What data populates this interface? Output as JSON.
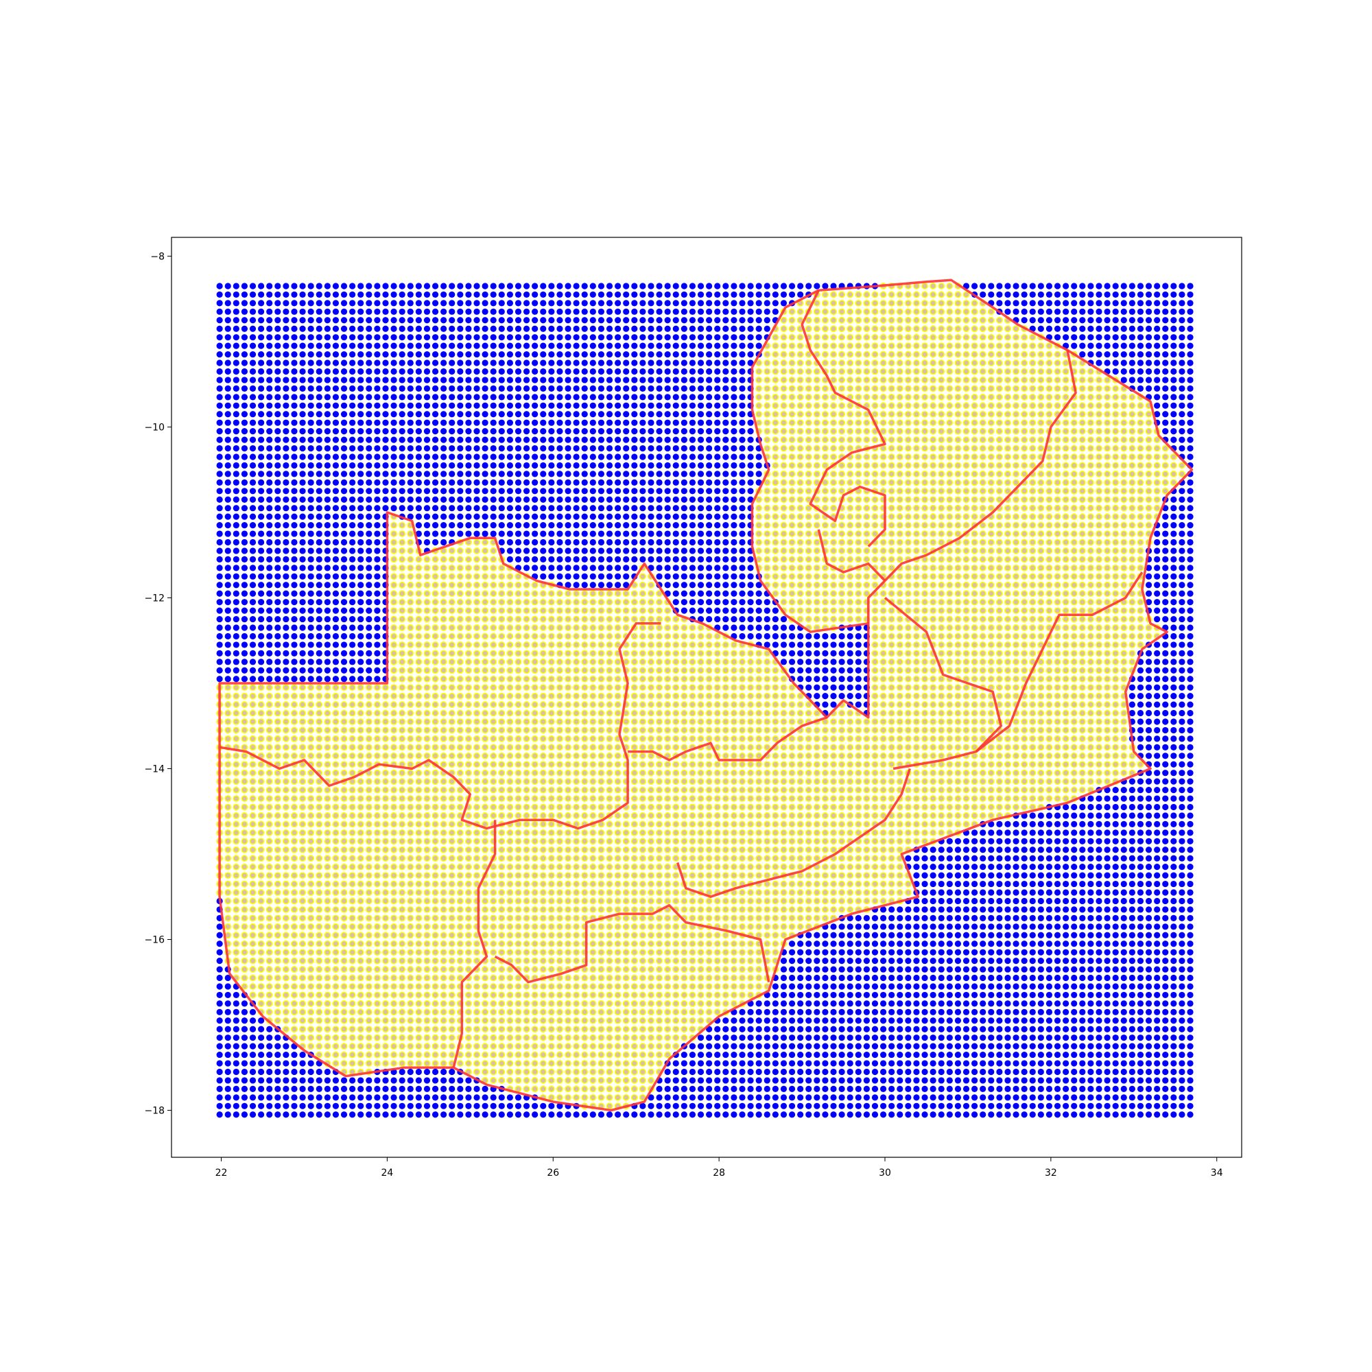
{
  "chart_data": {
    "type": "scatter",
    "xlim": [
      21.4,
      34.3
    ],
    "ylim": [
      -18.55,
      -7.78
    ],
    "x_ticks": [
      22,
      24,
      26,
      28,
      30,
      32,
      34
    ],
    "y_ticks": [
      -8,
      -10,
      -12,
      -14,
      -16,
      -18
    ],
    "x_tick_labels": [
      "22",
      "24",
      "26",
      "28",
      "30",
      "32",
      "34"
    ],
    "y_tick_labels": [
      "−8",
      "−10",
      "−12",
      "−14",
      "−16",
      "−18"
    ],
    "grid": false,
    "series": [
      {
        "marker": "filled-circle",
        "color": "#0000ff",
        "x_start": 21.98,
        "x_end": 33.7,
        "x_step": 0.1,
        "y_start": -8.35,
        "y_end": -18.08,
        "y_step": -0.1
      },
      {
        "marker": "hollow-circle-yellow-edge",
        "face_color": "#d8bfa6",
        "edge_color": "#ffff00",
        "region": "inside outline"
      }
    ],
    "outline": {
      "color": "#ff3333",
      "outer": [
        [
          21.98,
          -13.0
        ],
        [
          24.0,
          -13.0
        ],
        [
          24.0,
          -11.0
        ],
        [
          24.3,
          -11.1
        ],
        [
          24.4,
          -11.5
        ],
        [
          24.7,
          -11.4
        ],
        [
          25.0,
          -11.3
        ],
        [
          25.3,
          -11.3
        ],
        [
          25.4,
          -11.6
        ],
        [
          25.8,
          -11.8
        ],
        [
          26.2,
          -11.9
        ],
        [
          26.9,
          -11.9
        ],
        [
          27.1,
          -11.6
        ],
        [
          27.3,
          -11.9
        ],
        [
          27.5,
          -12.2
        ],
        [
          27.8,
          -12.3
        ],
        [
          28.2,
          -12.5
        ],
        [
          28.6,
          -12.6
        ],
        [
          28.9,
          -13.0
        ],
        [
          29.3,
          -13.4
        ],
        [
          29.5,
          -13.2
        ],
        [
          29.8,
          -13.4
        ],
        [
          29.8,
          -12.3
        ],
        [
          29.1,
          -12.4
        ],
        [
          28.8,
          -12.2
        ],
        [
          28.5,
          -11.8
        ],
        [
          28.4,
          -11.4
        ],
        [
          28.4,
          -10.9
        ],
        [
          28.6,
          -10.5
        ],
        [
          28.5,
          -10.2
        ],
        [
          28.4,
          -9.8
        ],
        [
          28.4,
          -9.3
        ],
        [
          28.8,
          -8.6
        ],
        [
          29.2,
          -8.4
        ],
        [
          29.9,
          -8.35
        ],
        [
          30.5,
          -8.3
        ],
        [
          30.8,
          -8.28
        ],
        [
          31.3,
          -8.6
        ],
        [
          31.6,
          -8.8
        ],
        [
          32.2,
          -9.1
        ],
        [
          32.7,
          -9.4
        ],
        [
          33.2,
          -9.7
        ],
        [
          33.3,
          -10.1
        ],
        [
          33.7,
          -10.5
        ],
        [
          33.4,
          -10.8
        ],
        [
          33.2,
          -11.3
        ],
        [
          33.1,
          -11.9
        ],
        [
          33.2,
          -12.3
        ],
        [
          33.4,
          -12.4
        ],
        [
          33.1,
          -12.6
        ],
        [
          32.9,
          -13.1
        ],
        [
          33.0,
          -13.8
        ],
        [
          33.2,
          -14.0
        ],
        [
          32.2,
          -14.4
        ],
        [
          31.3,
          -14.6
        ],
        [
          30.2,
          -15.0
        ],
        [
          30.4,
          -15.5
        ],
        [
          29.6,
          -15.7
        ],
        [
          28.8,
          -16.0
        ],
        [
          28.6,
          -16.6
        ],
        [
          28.0,
          -16.9
        ],
        [
          27.4,
          -17.4
        ],
        [
          27.1,
          -17.9
        ],
        [
          26.7,
          -18.0
        ],
        [
          26.0,
          -17.9
        ],
        [
          25.6,
          -17.8
        ],
        [
          25.2,
          -17.7
        ],
        [
          24.8,
          -17.5
        ],
        [
          24.2,
          -17.5
        ],
        [
          23.5,
          -17.6
        ],
        [
          23.0,
          -17.3
        ],
        [
          22.5,
          -16.9
        ],
        [
          22.1,
          -16.4
        ],
        [
          21.98,
          -15.5
        ],
        [
          21.98,
          -13.0
        ]
      ],
      "borders": [
        [
          [
            21.98,
            -13.75
          ],
          [
            22.3,
            -13.8
          ],
          [
            22.7,
            -14.0
          ],
          [
            23.0,
            -13.9
          ],
          [
            23.3,
            -14.2
          ],
          [
            23.6,
            -14.1
          ],
          [
            23.9,
            -13.95
          ],
          [
            24.3,
            -14.0
          ],
          [
            24.5,
            -13.9
          ],
          [
            24.8,
            -14.1
          ],
          [
            25.0,
            -14.3
          ],
          [
            24.9,
            -14.6
          ],
          [
            25.2,
            -14.7
          ],
          [
            25.6,
            -14.6
          ],
          [
            26.0,
            -14.6
          ],
          [
            26.3,
            -14.7
          ],
          [
            26.6,
            -14.6
          ],
          [
            26.9,
            -14.4
          ],
          [
            26.9,
            -13.9
          ],
          [
            26.8,
            -13.6
          ],
          [
            26.9,
            -13.0
          ],
          [
            26.8,
            -12.6
          ],
          [
            27.0,
            -12.3
          ],
          [
            27.3,
            -12.3
          ]
        ],
        [
          [
            26.9,
            -13.8
          ],
          [
            27.2,
            -13.8
          ],
          [
            27.4,
            -13.9
          ],
          [
            27.6,
            -13.8
          ],
          [
            27.9,
            -13.7
          ],
          [
            28.0,
            -13.9
          ],
          [
            28.5,
            -13.9
          ],
          [
            28.7,
            -13.7
          ],
          [
            29.0,
            -13.5
          ],
          [
            29.3,
            -13.4
          ]
        ],
        [
          [
            25.3,
            -14.6
          ],
          [
            25.3,
            -15.0
          ],
          [
            25.1,
            -15.4
          ],
          [
            25.1,
            -15.9
          ],
          [
            25.2,
            -16.2
          ],
          [
            24.9,
            -16.5
          ],
          [
            24.9,
            -17.1
          ],
          [
            24.8,
            -17.5
          ]
        ],
        [
          [
            25.3,
            -16.2
          ],
          [
            25.5,
            -16.3
          ],
          [
            25.7,
            -16.5
          ],
          [
            26.1,
            -16.4
          ],
          [
            26.4,
            -16.3
          ],
          [
            26.4,
            -15.8
          ],
          [
            26.8,
            -15.7
          ],
          [
            27.2,
            -15.7
          ],
          [
            27.4,
            -15.6
          ],
          [
            27.6,
            -15.8
          ],
          [
            28.1,
            -15.9
          ],
          [
            28.5,
            -16.0
          ],
          [
            28.6,
            -16.5
          ]
        ],
        [
          [
            27.5,
            -15.1
          ],
          [
            27.6,
            -15.4
          ],
          [
            27.9,
            -15.5
          ],
          [
            28.2,
            -15.4
          ],
          [
            28.6,
            -15.3
          ],
          [
            29.0,
            -15.2
          ],
          [
            29.4,
            -15.0
          ],
          [
            29.7,
            -14.8
          ],
          [
            30.0,
            -14.6
          ],
          [
            30.2,
            -14.3
          ],
          [
            30.3,
            -14.0
          ]
        ],
        [
          [
            29.8,
            -12.3
          ],
          [
            29.8,
            -12.0
          ],
          [
            30.0,
            -11.8
          ],
          [
            30.2,
            -11.6
          ],
          [
            30.5,
            -11.5
          ],
          [
            30.9,
            -11.3
          ],
          [
            31.3,
            -11.0
          ],
          [
            31.6,
            -10.7
          ],
          [
            31.9,
            -10.4
          ],
          [
            32.0,
            -10.0
          ],
          [
            32.3,
            -9.6
          ],
          [
            32.2,
            -9.1
          ]
        ],
        [
          [
            30.0,
            -12.0
          ],
          [
            30.5,
            -12.4
          ],
          [
            30.7,
            -12.9
          ],
          [
            31.0,
            -13.0
          ],
          [
            31.3,
            -13.1
          ],
          [
            31.4,
            -13.5
          ],
          [
            31.1,
            -13.8
          ],
          [
            30.7,
            -13.9
          ],
          [
            30.1,
            -14.0
          ]
        ],
        [
          [
            31.1,
            -13.8
          ],
          [
            31.5,
            -13.5
          ],
          [
            31.7,
            -13.0
          ],
          [
            31.9,
            -12.6
          ],
          [
            32.1,
            -12.2
          ],
          [
            32.5,
            -12.2
          ],
          [
            32.9,
            -12.0
          ],
          [
            33.1,
            -11.7
          ]
        ],
        [
          [
            29.2,
            -8.4
          ],
          [
            29.0,
            -8.8
          ],
          [
            29.1,
            -9.1
          ],
          [
            29.3,
            -9.4
          ],
          [
            29.4,
            -9.6
          ],
          [
            29.8,
            -9.8
          ],
          [
            30.0,
            -10.2
          ],
          [
            29.6,
            -10.3
          ],
          [
            29.3,
            -10.5
          ],
          [
            29.1,
            -10.9
          ],
          [
            29.4,
            -11.1
          ],
          [
            29.5,
            -10.8
          ],
          [
            29.7,
            -10.7
          ],
          [
            30.0,
            -10.8
          ],
          [
            30.0,
            -11.2
          ],
          [
            29.8,
            -11.4
          ]
        ],
        [
          [
            30.0,
            -11.8
          ],
          [
            29.8,
            -11.6
          ],
          [
            29.5,
            -11.7
          ],
          [
            29.3,
            -11.6
          ],
          [
            29.2,
            -11.2
          ]
        ]
      ]
    }
  }
}
